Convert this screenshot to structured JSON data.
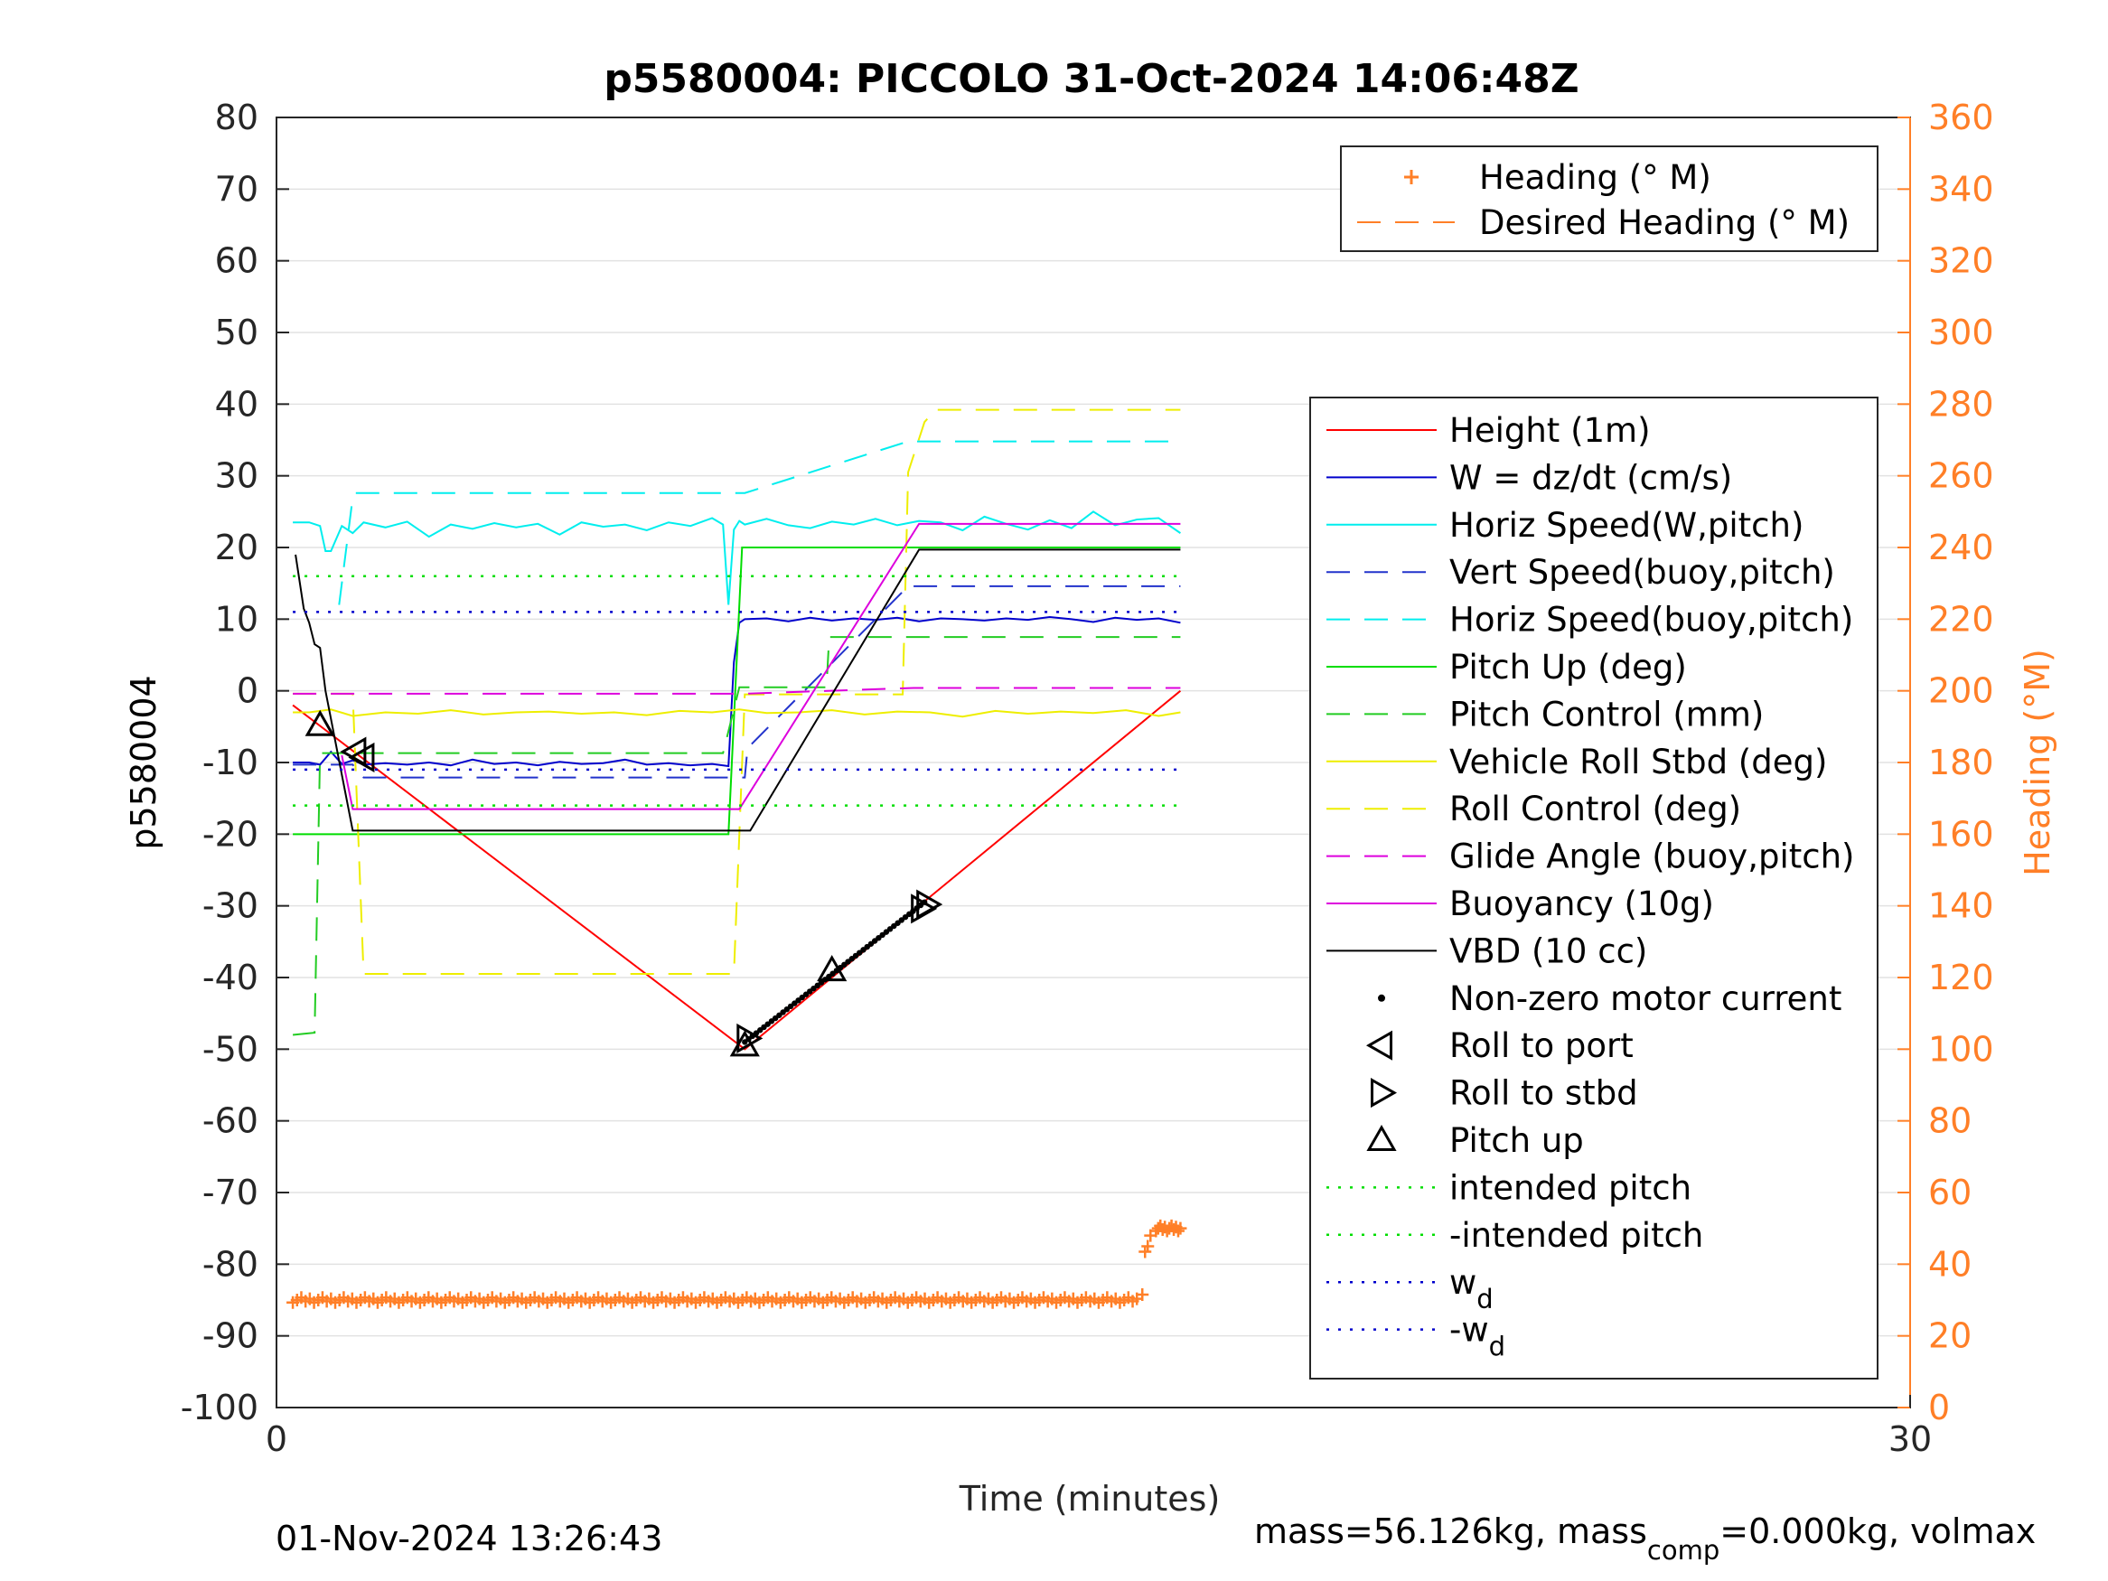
{
  "chart_data": {
    "type": "line",
    "title": "p5580004: PICCOLO 31-Oct-2024 14:06:48Z",
    "xlabel": "Time (minutes)",
    "ylabel": "p5580004",
    "y2label": "Heading (°M)",
    "xlim": [
      0,
      30
    ],
    "ylim": [
      -100,
      80
    ],
    "y2lim": [
      0,
      360
    ],
    "xticks": [
      "0",
      "30"
    ],
    "yticks": [
      "80",
      "70",
      "60",
      "50",
      "40",
      "30",
      "20",
      "10",
      "0",
      "-10",
      "-20",
      "-30",
      "-40",
      "-50",
      "-60",
      "-70",
      "-80",
      "-90",
      "-100"
    ],
    "y2ticks": [
      "360",
      "340",
      "320",
      "300",
      "280",
      "260",
      "240",
      "220",
      "200",
      "180",
      "160",
      "140",
      "120",
      "100",
      "80",
      "60",
      "40",
      "20",
      "0"
    ],
    "grid": true,
    "footer_left": "01-Nov-2024 13:26:43",
    "footer_right": {
      "pre": "mass=56.126kg, mass",
      "sub": "comp",
      "post": "=0.000kg, volmax"
    },
    "heading_legend": {
      "placement": "top-right",
      "entries": [
        "Heading (° M)",
        "Desired Heading (° M)"
      ]
    },
    "legend": {
      "placement": "right",
      "entries": [
        {
          "label": "Height (1m)",
          "color": "#ff0000",
          "style": "solid"
        },
        {
          "label": "W = dz/dt (cm/s)",
          "color": "#0000cc",
          "style": "solid"
        },
        {
          "label": "Horiz Speed(W,pitch)",
          "color": "#00eeee",
          "style": "solid"
        },
        {
          "label": "Vert Speed(buoy,pitch)",
          "color": "#2233cc",
          "style": "dashed"
        },
        {
          "label": "Horiz Speed(buoy,pitch)",
          "color": "#00eeee",
          "style": "dashed"
        },
        {
          "label": "Pitch Up (deg)",
          "color": "#00dd00",
          "style": "solid"
        },
        {
          "label": "Pitch Control (mm)",
          "color": "#22cc22",
          "style": "dashed"
        },
        {
          "label": "Vehicle Roll Stbd (deg)",
          "color": "#eeee00",
          "style": "solid"
        },
        {
          "label": "Roll Control (deg)",
          "color": "#eeee00",
          "style": "dashed"
        },
        {
          "label": "Glide Angle (buoy,pitch)",
          "color": "#dd00dd",
          "style": "dashed"
        },
        {
          "label": "Buoyancy (10g)",
          "color": "#dd00dd",
          "style": "solid"
        },
        {
          "label": "VBD (10 cc)",
          "color": "#000000",
          "style": "solid"
        },
        {
          "label": "Non-zero motor current",
          "color": "#000000",
          "style": "dot-marker"
        },
        {
          "label": "Roll to port",
          "color": "#000000",
          "style": "triangle-left"
        },
        {
          "label": "Roll to stbd",
          "color": "#000000",
          "style": "triangle-right"
        },
        {
          "label": "Pitch up",
          "color": "#000000",
          "style": "triangle-up"
        },
        {
          "label": "intended pitch",
          "color": "#00dd00",
          "style": "dotted"
        },
        {
          "label": "-intended pitch",
          "color": "#00dd00",
          "style": "dotted"
        },
        {
          "label": "w",
          "sub": "d",
          "color": "#0000cc",
          "style": "dotted"
        },
        {
          "label": "-w",
          "sub": "d",
          "color": "#0000cc",
          "style": "dotted"
        }
      ]
    },
    "colors": {
      "heading": "#ff7f27",
      "axis": "#262626",
      "grid": "#e2e2e2"
    },
    "series": [
      {
        "name": "Height (1m)",
        "color": "#ff0000",
        "style": "solid",
        "x": [
          0.3,
          8.6,
          16.6
        ],
        "y": [
          -2,
          -50,
          0
        ]
      },
      {
        "name": "W = dz/dt (cm/s)",
        "color": "#0000cc",
        "style": "solid",
        "x": [
          0.3,
          0.6,
          0.8,
          1.0,
          1.2,
          1.4,
          1.6,
          2.0,
          2.4,
          2.8,
          3.2,
          3.6,
          4.0,
          4.4,
          4.8,
          5.2,
          5.6,
          6.0,
          6.4,
          6.8,
          7.2,
          7.6,
          8.0,
          8.3,
          8.4,
          8.5,
          8.6,
          9.0,
          9.4,
          9.8,
          10.2,
          10.6,
          11.0,
          11.4,
          11.8,
          12.2,
          12.6,
          13.0,
          13.4,
          13.8,
          14.2,
          14.6,
          15.0,
          15.4,
          15.8,
          16.2,
          16.6
        ],
        "y": [
          -10,
          -10,
          -10.3,
          -8.5,
          -10.2,
          -9.7,
          -10.3,
          -10.1,
          -10.3,
          -10.0,
          -10.4,
          -9.6,
          -10.2,
          -10.0,
          -10.4,
          -9.9,
          -10.2,
          -10.1,
          -9.6,
          -10.3,
          -10.1,
          -10.4,
          -10.2,
          -10.5,
          4,
          9.5,
          10,
          10.1,
          9.7,
          10.2,
          9.8,
          10.1,
          9.9,
          10.2,
          9.7,
          10.1,
          10.0,
          9.8,
          10.1,
          9.9,
          10.3,
          10.0,
          9.6,
          10.2,
          9.9,
          10.1,
          9.5
        ]
      },
      {
        "name": "Horiz Speed(W,pitch)",
        "color": "#00eeee",
        "style": "solid",
        "x": [
          0.3,
          0.6,
          0.8,
          0.9,
          1.0,
          1.2,
          1.4,
          1.6,
          2.0,
          2.4,
          2.8,
          3.2,
          3.6,
          4.0,
          4.4,
          4.8,
          5.2,
          5.6,
          6.0,
          6.4,
          6.8,
          7.2,
          7.6,
          8.0,
          8.2,
          8.3,
          8.4,
          8.5,
          8.6,
          9.0,
          9.4,
          9.8,
          10.2,
          10.6,
          11.0,
          11.4,
          11.8,
          12.2,
          12.6,
          13.0,
          13.4,
          13.8,
          14.2,
          14.6,
          15.0,
          15.4,
          15.8,
          16.2,
          16.6
        ],
        "y": [
          23.5,
          23.5,
          23,
          19.5,
          19.5,
          23,
          22,
          23.5,
          22.8,
          23.6,
          21.5,
          23.2,
          22.6,
          23.4,
          22.8,
          23.3,
          21.8,
          23.5,
          22.9,
          23.2,
          22.4,
          23.5,
          23.0,
          24.1,
          23.2,
          12,
          22.5,
          23.7,
          23.2,
          24.0,
          23.1,
          22.7,
          23.6,
          23.2,
          24.0,
          23.1,
          23.7,
          23.5,
          22.4,
          24.3,
          23.3,
          22.5,
          23.8,
          22.7,
          25.0,
          23.1,
          23.9,
          24.1,
          22.0
        ]
      },
      {
        "name": "Vert Speed(buoy,pitch)",
        "color": "#2233cc",
        "style": "dashed",
        "x": [
          0.3,
          1.4,
          1.6,
          8.6,
          8.65,
          11.6,
          16.6
        ],
        "y": [
          -10.3,
          -10.3,
          -12.1,
          -12.1,
          -8,
          14.6,
          14.6
        ]
      },
      {
        "name": "Horiz Speed(buoy,pitch)",
        "color": "#00eeee",
        "style": "dashed",
        "x": [
          1.15,
          1.4,
          1.45,
          8.6,
          11.6,
          16.6
        ],
        "y": [
          12,
          27,
          27.6,
          27.6,
          34.8,
          34.8
        ]
      },
      {
        "name": "Pitch Up (deg)",
        "color": "#00dd00",
        "style": "solid",
        "x": [
          0.3,
          8.3,
          8.55,
          16.6
        ],
        "y": [
          -20,
          -20,
          20,
          20
        ]
      },
      {
        "name": "Pitch Control (mm)",
        "color": "#22cc22",
        "style": "dashed",
        "x": [
          0.3,
          0.7,
          0.8,
          8.2,
          8.5,
          10.1,
          10.15,
          16.6
        ],
        "y": [
          -48,
          -47.7,
          -8.7,
          -8.7,
          0.5,
          0.5,
          7.5,
          7.5
        ]
      },
      {
        "name": "Vehicle Roll Stbd (deg)",
        "color": "#eeee00",
        "style": "solid",
        "x": [
          0.3,
          0.6,
          1.0,
          1.4,
          2.0,
          2.6,
          3.2,
          3.8,
          4.4,
          5.0,
          5.6,
          6.2,
          6.8,
          7.4,
          8.0,
          8.5,
          9.0,
          9.6,
          10.2,
          10.8,
          11.4,
          12.0,
          12.6,
          13.2,
          13.8,
          14.4,
          15.0,
          15.6,
          16.2,
          16.6
        ],
        "y": [
          -3,
          -3,
          -2.6,
          -3.5,
          -3.0,
          -3.2,
          -2.7,
          -3.3,
          -3.0,
          -2.9,
          -3.2,
          -3.0,
          -3.4,
          -2.8,
          -3.0,
          -2.6,
          -3.1,
          -3.0,
          -2.7,
          -3.3,
          -2.9,
          -3.0,
          -3.6,
          -2.8,
          -3.2,
          -2.9,
          -3.1,
          -2.7,
          -3.5,
          -3.0
        ]
      },
      {
        "name": "Roll Control (deg)",
        "color": "#eeee00",
        "style": "dashed",
        "x": [
          0.3,
          1.4,
          1.6,
          8.4,
          8.6,
          11.5,
          11.6,
          11.9,
          12.1,
          16.6
        ],
        "y": [
          -0.4,
          -0.4,
          -39.5,
          -39.5,
          -0.5,
          -0.5,
          30.5,
          37.5,
          39.2,
          39.2
        ]
      },
      {
        "name": "Glide Angle (buoy,pitch)",
        "color": "#dd00dd",
        "style": "dashed",
        "x": [
          0.3,
          8.6,
          11.7,
          16.6
        ],
        "y": [
          -0.4,
          -0.4,
          0.4,
          0.4
        ]
      },
      {
        "name": "Buoyancy (10g)",
        "color": "#dd00dd",
        "style": "solid",
        "x": [
          1.2,
          1.4,
          8.5,
          11.8,
          16.6
        ],
        "y": [
          -9,
          -16.5,
          -16.5,
          23.3,
          23.3
        ]
      },
      {
        "name": "VBD (10 cc)",
        "color": "#000000",
        "style": "solid",
        "x": [
          0.35,
          0.5,
          0.6,
          0.7,
          0.8,
          0.9,
          1.4,
          8.7,
          11.8,
          16.6
        ],
        "y": [
          19,
          11.5,
          9.5,
          6.5,
          6,
          0,
          -19.5,
          -19.5,
          19.7,
          19.7
        ]
      },
      {
        "name": "Non-zero motor current",
        "color": "#000000",
        "style": "dots",
        "x": [
          8.6,
          11.9
        ],
        "y": [
          -49,
          -29.5
        ],
        "count": 48
      },
      {
        "name": "Roll to port",
        "color": "#000000",
        "style": "triangle-left",
        "x": [
          1.45,
          1.6
        ],
        "y": [
          -8.5,
          -9.3
        ]
      },
      {
        "name": "Roll to stbd",
        "color": "#000000",
        "style": "triangle-right",
        "x": [
          8.65,
          11.85,
          11.95
        ],
        "y": [
          -48.5,
          -30.4,
          -29.8
        ]
      },
      {
        "name": "Pitch up",
        "color": "#000000",
        "style": "triangle-up",
        "x": [
          0.8,
          8.6,
          10.2
        ],
        "y": [
          -4.8,
          -49.5,
          -39
        ]
      },
      {
        "name": "intended pitch",
        "color": "#00dd00",
        "style": "dotted",
        "x": [
          0.3,
          16.6
        ],
        "y": [
          16,
          16
        ]
      },
      {
        "name": "-intended pitch",
        "color": "#00dd00",
        "style": "dotted",
        "x": [
          0.3,
          16.6
        ],
        "y": [
          -16,
          -16
        ]
      },
      {
        "name": "wd",
        "color": "#0000cc",
        "style": "dotted",
        "x": [
          0.3,
          16.6
        ],
        "y": [
          11,
          11
        ]
      },
      {
        "name": "-wd",
        "color": "#0000cc",
        "style": "dotted",
        "x": [
          0.3,
          16.6
        ],
        "y": [
          -11,
          -11
        ]
      }
    ],
    "heading_series": {
      "name": "Heading (° M)",
      "axis": "right",
      "color": "#ff7f27",
      "segments": [
        {
          "x_start": 0.3,
          "x_end": 15.8,
          "y": 30,
          "count": 200
        },
        {
          "x_start": 16.15,
          "x_end": 16.6,
          "y": 50,
          "count": 12
        }
      ],
      "extra_points": {
        "x": [
          15.9,
          15.95,
          16.0,
          16.05
        ],
        "y": [
          31.5,
          43.5,
          45,
          48
        ]
      }
    }
  }
}
